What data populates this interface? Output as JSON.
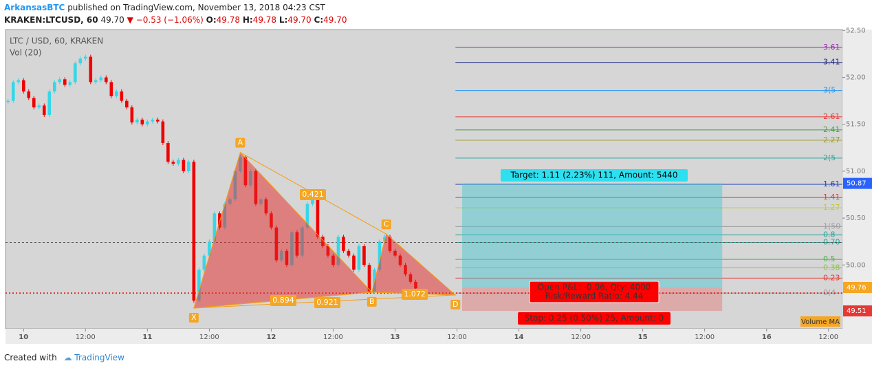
{
  "header": {
    "author": "ArkansasBTC",
    "published": "published on TradingView.com, November 13, 2018 04:23 CST"
  },
  "quote": {
    "symbol": "KRAKEN:LTCUSD, 60",
    "last": "49.70",
    "arrow": "▼",
    "change": "−0.53 (−1.06%)",
    "o_label": "O:",
    "open": "49.78",
    "h_label": "H:",
    "high": "49.78",
    "l_label": "L:",
    "low": "49.70",
    "c_label": "C:",
    "close": "49.70"
  },
  "chart_data": {
    "type": "candlestick",
    "title": "LTC / USD, 60, KRAKEN",
    "subtitle": "Vol (20)",
    "up_color": "#35d7e8",
    "down_color": "#f00000",
    "x": [
      0,
      1,
      2,
      3,
      4,
      5,
      6,
      7,
      8,
      9,
      10,
      11,
      12,
      13,
      14,
      15,
      16,
      17,
      18,
      19,
      20,
      21,
      22,
      23,
      24,
      25,
      26,
      27,
      28,
      29,
      30,
      31,
      32,
      33,
      34,
      35,
      36,
      37,
      38,
      39,
      40,
      41,
      42,
      43,
      44,
      45,
      46,
      47,
      48,
      49,
      50,
      51,
      52,
      53,
      54,
      55,
      56,
      57,
      58,
      59,
      60,
      61,
      62,
      63,
      64,
      65,
      66,
      67,
      68,
      69,
      70,
      71,
      72,
      73,
      74,
      75,
      76,
      77,
      78,
      79
    ],
    "close": [
      51.75,
      51.95,
      51.97,
      51.85,
      51.78,
      51.68,
      51.7,
      51.6,
      51.85,
      51.95,
      51.98,
      51.92,
      51.95,
      52.15,
      52.2,
      52.22,
      51.95,
      51.97,
      52.0,
      51.95,
      51.8,
      51.85,
      51.75,
      51.68,
      51.52,
      51.55,
      51.5,
      51.53,
      51.55,
      51.53,
      51.3,
      51.1,
      51.08,
      51.12,
      51.0,
      51.1,
      49.62,
      49.95,
      50.1,
      50.25,
      50.55,
      50.4,
      50.65,
      50.7,
      51.0,
      51.15,
      50.85,
      51.0,
      50.65,
      50.7,
      50.55,
      50.4,
      50.05,
      50.15,
      50.0,
      50.35,
      50.1,
      50.4,
      50.65,
      50.7,
      50.3,
      50.2,
      50.1,
      50.0,
      50.3,
      50.15,
      50.1,
      49.95,
      50.2,
      50.0,
      49.72,
      49.95,
      50.25,
      50.3,
      50.15,
      50.1,
      50.0,
      49.9,
      49.82,
      49.75
    ],
    "xlim": [
      -0.5,
      161.7
    ],
    "xticks": [
      {
        "value": 3,
        "label": "10"
      },
      {
        "value": 15,
        "label": "12:00"
      },
      {
        "value": 27,
        "label": "11"
      },
      {
        "value": 39,
        "label": "12:00"
      },
      {
        "value": 51,
        "label": "12"
      },
      {
        "value": 63,
        "label": "12:00"
      },
      {
        "value": 75,
        "label": "13"
      },
      {
        "value": 87,
        "label": "12:00"
      },
      {
        "value": 99,
        "label": "14"
      },
      {
        "value": 111,
        "label": "12:00"
      },
      {
        "value": 123,
        "label": "15"
      },
      {
        "value": 135,
        "label": "12:00"
      },
      {
        "value": 147,
        "label": "16"
      },
      {
        "value": 159,
        "label": "12:00"
      }
    ],
    "ylim": [
      49.32,
      52.51
    ],
    "yticks": [
      {
        "value": 52.5,
        "label": "52.50"
      },
      {
        "value": 52,
        "label": "52.00"
      },
      {
        "value": 51.5,
        "label": "51.50"
      },
      {
        "value": 51,
        "label": "51.00"
      },
      {
        "value": 50.5,
        "label": "50.50"
      },
      {
        "value": 50,
        "label": "50.00"
      }
    ],
    "pattern": {
      "points": [
        {
          "label": "X",
          "x": 36,
          "y": 49.54
        },
        {
          "label": "A",
          "x": 45,
          "y": 51.2
        },
        {
          "label": "B",
          "x": 70.5,
          "y": 49.71
        },
        {
          "label": "C",
          "x": 73.3,
          "y": 50.33
        },
        {
          "label": "D",
          "x": 86.7,
          "y": 49.68
        }
      ],
      "ratios": [
        "0.421",
        "0.894",
        "0.921",
        "1.072"
      ]
    },
    "fib": [
      {
        "label": "3.61",
        "value": 52.32,
        "color": "#9c27b0"
      },
      {
        "label": "3.41",
        "value": 52.16,
        "color": "#1a237e"
      },
      {
        "label": "3(5",
        "value": 51.86,
        "color": "#2196f3"
      },
      {
        "label": "2.61",
        "value": 51.58,
        "color": "#e53935"
      },
      {
        "label": "2.41",
        "value": 51.44,
        "color": "#43a047"
      },
      {
        "label": "2.27",
        "value": 51.33,
        "color": "#9e9d24"
      },
      {
        "label": "2(5",
        "value": 51.14,
        "color": "#26a69a"
      },
      {
        "label": "1.61",
        "value": 50.86,
        "color": "#1e3fb8"
      },
      {
        "label": "1.41",
        "value": 50.72,
        "color": "#e53935"
      },
      {
        "label": "1.27",
        "value": 50.61,
        "color": "#c0ca33"
      },
      {
        "label": "1(50",
        "value": 50.41,
        "color": "#9e9e9e"
      },
      {
        "label": "0.8",
        "value": 50.32,
        "color": "#26a69a"
      },
      {
        "label": "0.70",
        "value": 50.24,
        "color": "#26a69a"
      },
      {
        "label": "0.5",
        "value": 50.06,
        "color": "#4caf50"
      },
      {
        "label": "0.38",
        "value": 49.97,
        "color": "#8bc34a"
      },
      {
        "label": "0.23",
        "value": 49.86,
        "color": "#e53935"
      },
      {
        "label": "0(4",
        "value": 49.7,
        "color": "#9e9e9e"
      }
    ],
    "position": {
      "start": 88,
      "end": 138.4,
      "entry": 49.76,
      "target": 50.87,
      "stop": 49.51,
      "target_label": "Target: 1.11 (2.23%) 111, Amount: 5440",
      "stop_label": "Stop: 0.25 (0.50%) 25, Amount: 0",
      "pnl_label": "Open P&L: -0.06, Qty: 4000",
      "rr_label": "Risk/Reward Ratio: 4.44"
    },
    "last_price": 49.7,
    "mark_price": 50.24,
    "volume_ma_label": "Volume MA"
  },
  "footer": {
    "created": "Created with",
    "brand": "TradingView"
  }
}
